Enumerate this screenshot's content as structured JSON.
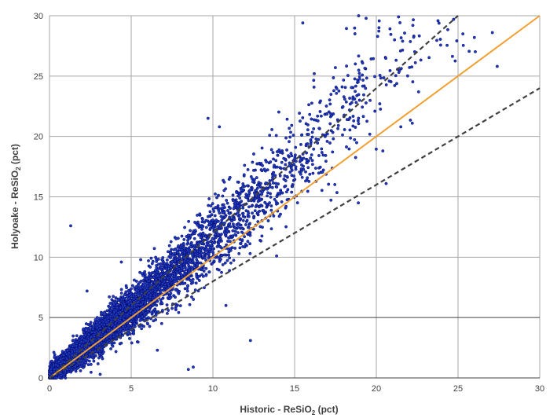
{
  "chart_data": {
    "type": "scatter",
    "title": "",
    "xlabel_parts": [
      "Historic - ReSiO",
      "2",
      " (pct)"
    ],
    "ylabel_parts": [
      "Holyoake - ReSiO",
      "2",
      " (pct)"
    ],
    "xlim": [
      0,
      30
    ],
    "ylim": [
      0,
      30
    ],
    "x_ticks": [
      0,
      5,
      10,
      15,
      20,
      25,
      30
    ],
    "y_ticks": [
      0,
      5,
      10,
      15,
      20,
      25,
      30
    ],
    "grid": true,
    "legend": "none",
    "reference_lines": [
      {
        "name": "y = 1.2x (upper bound)",
        "style": "dashed",
        "color": "#404040",
        "x": [
          0,
          30
        ],
        "y": [
          0,
          36
        ]
      },
      {
        "name": "y = x (1:1 line)",
        "style": "solid",
        "color": "#f0a030",
        "x": [
          0,
          30
        ],
        "y": [
          0,
          30
        ]
      },
      {
        "name": "y = 0.8x (lower bound)",
        "style": "dashed",
        "color": "#404040",
        "x": [
          0,
          30
        ],
        "y": [
          0,
          24
        ]
      }
    ],
    "series": [
      {
        "name": "Samples",
        "marker_color": "#1f3bbf",
        "marker_edge": "#000060",
        "points_description": "approx. 6000 samples; dense cloud from (0,0) to (25,30), trend about y = 1.2x",
        "point_count": 6000,
        "trend": {
          "slope_low_x": 1.1,
          "slope_high_x": 1.25,
          "x_max": 25
        },
        "outliers": [
          {
            "x": 1.3,
            "y": 12.6
          },
          {
            "x": 4.4,
            "y": 9.6
          },
          {
            "x": 8.5,
            "y": 0.7
          },
          {
            "x": 8.8,
            "y": 0.9
          },
          {
            "x": 9.7,
            "y": 21.5
          },
          {
            "x": 10.4,
            "y": 20.8
          },
          {
            "x": 13.9,
            "y": 10.1
          },
          {
            "x": 10.8,
            "y": 6.0
          },
          {
            "x": 12.3,
            "y": 3.1
          },
          {
            "x": 21.5,
            "y": 20.8
          },
          {
            "x": 22.2,
            "y": 21.1
          },
          {
            "x": 20.4,
            "y": 18.8
          },
          {
            "x": 25.3,
            "y": 28.5
          },
          {
            "x": 26.0,
            "y": 28.2
          },
          {
            "x": 27.1,
            "y": 28.6
          },
          {
            "x": 27.4,
            "y": 25.8
          },
          {
            "x": 15.5,
            "y": 29.4
          },
          {
            "x": 16.2,
            "y": 25.2
          },
          {
            "x": 18.9,
            "y": 14.5
          },
          {
            "x": 20.6,
            "y": 16.1
          },
          {
            "x": 6.6,
            "y": 2.3
          },
          {
            "x": 3.1,
            "y": 0.3
          },
          {
            "x": 2.3,
            "y": 7.2
          }
        ]
      }
    ]
  }
}
